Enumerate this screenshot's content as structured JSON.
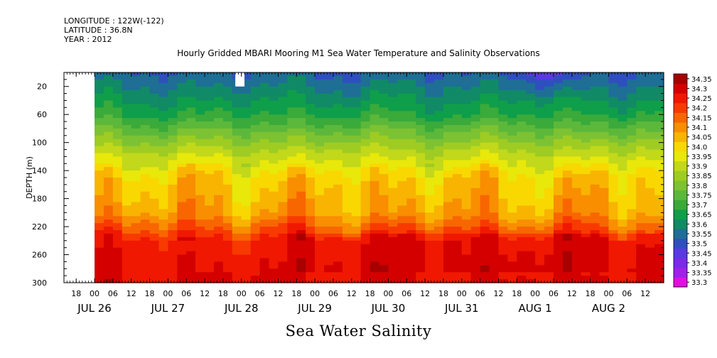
{
  "header": {
    "longitude": "LONGITUDE : 122W(-122)",
    "latitude": "LATITUDE : 36.8N",
    "year": "YEAR : 2012"
  },
  "title": "Hourly Gridded MBARI Mooring M1 Sea Water Temperature and Salinity Observations",
  "footer_label": "Sea Water Salinity",
  "chart_data": {
    "type": "heatmap",
    "title": "Hourly Gridded MBARI Mooring M1 Sea Water Temperature and Salinity Observations",
    "xlabel": "",
    "ylabel": "DEPTH (m)",
    "colorbar_label": "Sea Water Salinity",
    "x_start": "2012-07-25T14:00",
    "x_end": "2012-08-02T18:00",
    "y_range": [
      0,
      300
    ],
    "y_inverted": true,
    "y_ticks": [
      20,
      60,
      100,
      140,
      180,
      220,
      260,
      300
    ],
    "x_hour_ticks": [
      "18",
      "00",
      "06",
      "12",
      "18",
      "00",
      "06",
      "12",
      "18",
      "00",
      "06",
      "12",
      "18",
      "00",
      "06",
      "12",
      "18",
      "00",
      "06",
      "12",
      "18",
      "00",
      "06",
      "12",
      "18",
      "00",
      "06",
      "12",
      "18",
      "00",
      "06",
      "12"
    ],
    "x_day_labels": [
      "JUL 26",
      "JUL 27",
      "JUL 28",
      "JUL 29",
      "JUL 30",
      "JUL 31",
      "AUG  1",
      "AUG  2"
    ],
    "data_start": "2012-07-26T00:00",
    "data_gap": {
      "start": "2012-07-27T22:00",
      "end": "2012-07-28T01:00",
      "depth_range": [
        0,
        20
      ]
    },
    "levels": [
      33.3,
      33.35,
      33.4,
      33.45,
      33.5,
      33.55,
      33.6,
      33.65,
      33.7,
      33.75,
      33.8,
      33.85,
      33.9,
      33.95,
      34.0,
      34.05,
      34.1,
      34.15,
      34.2,
      34.25,
      34.3,
      34.35
    ],
    "level_colors": [
      "#e010e0",
      "#a020e8",
      "#7a2ae8",
      "#5a3ae0",
      "#2f4fbf",
      "#1e6e96",
      "#118a66",
      "#0f9e4a",
      "#3aaa3a",
      "#5cb83a",
      "#7dc232",
      "#9ecc22",
      "#c2d81a",
      "#e8e80a",
      "#f8d800",
      "#f8b400",
      "#f88e00",
      "#f86600",
      "#f83a00",
      "#f01800",
      "#d40000",
      "#a80000"
    ],
    "grid": false,
    "legend": "colorbar-right"
  }
}
